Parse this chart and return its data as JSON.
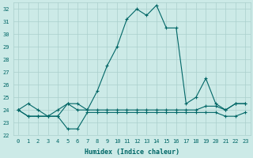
{
  "xlabel": "Humidex (Indice chaleur)",
  "xlim": [
    -0.5,
    23.5
  ],
  "ylim": [
    22,
    32.5
  ],
  "yticks": [
    22,
    23,
    24,
    25,
    26,
    27,
    28,
    29,
    30,
    31,
    32
  ],
  "xticks": [
    0,
    1,
    2,
    3,
    4,
    5,
    6,
    7,
    8,
    9,
    10,
    11,
    12,
    13,
    14,
    15,
    16,
    17,
    18,
    19,
    20,
    21,
    22,
    23
  ],
  "background_color": "#cceae7",
  "grid_color": "#aacfcc",
  "line_color": "#006666",
  "series1": [
    24.0,
    24.5,
    24.0,
    23.5,
    24.0,
    24.5,
    24.0,
    24.0,
    25.5,
    27.5,
    29.0,
    31.2,
    32.0,
    31.5,
    32.3,
    30.5,
    30.5,
    24.5,
    25.0,
    26.5,
    24.5,
    24.0,
    24.5,
    24.5
  ],
  "series2": [
    24.0,
    23.5,
    23.5,
    23.5,
    23.5,
    24.5,
    24.5,
    24.0,
    24.0,
    24.0,
    24.0,
    24.0,
    24.0,
    24.0,
    24.0,
    24.0,
    24.0,
    24.0,
    24.0,
    24.3,
    24.3,
    24.0,
    24.5,
    24.5
  ],
  "series3": [
    24.0,
    23.5,
    23.5,
    23.5,
    23.5,
    22.5,
    22.5,
    23.8,
    23.8,
    23.8,
    23.8,
    23.8,
    23.8,
    23.8,
    23.8,
    23.8,
    23.8,
    23.8,
    23.8,
    23.8,
    23.8,
    23.5,
    23.5,
    23.8
  ],
  "marker": "+"
}
